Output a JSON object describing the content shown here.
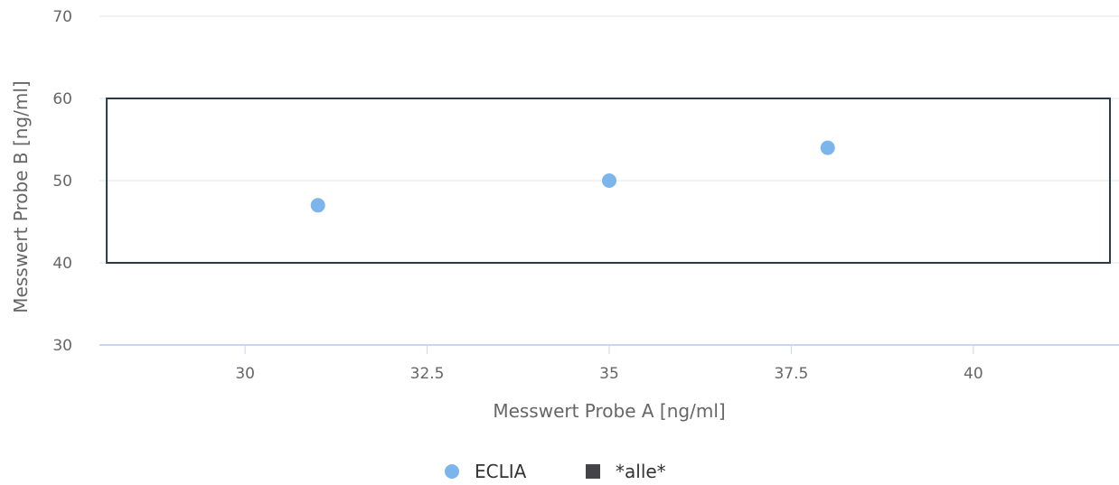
{
  "chart_data": {
    "type": "scatter",
    "title": "",
    "xlabel": "Messwert Probe A [ng/ml]",
    "ylabel": "Messwert Probe B [ng/ml]",
    "xlim": [
      28,
      42
    ],
    "ylim": [
      30,
      70
    ],
    "x_ticks": [
      "30",
      "32.5",
      "35",
      "37.5",
      "40"
    ],
    "x_tick_values": [
      30,
      32.5,
      35,
      37.5,
      40
    ],
    "y_ticks": [
      "30",
      "40",
      "50",
      "60",
      "70"
    ],
    "y_tick_values": [
      30,
      40,
      50,
      60,
      70
    ],
    "grid": "horizontal",
    "legend_position": "bottom-center",
    "series": [
      {
        "name": "ECLIA",
        "kind": "scatter",
        "color": "#7cb5ec",
        "points": [
          {
            "x": 31,
            "y": 47
          },
          {
            "x": 35,
            "y": 50
          },
          {
            "x": 38,
            "y": 54
          }
        ]
      },
      {
        "name": "*alle*",
        "kind": "rectangle",
        "color": "#434348",
        "x_range": [
          28.1,
          42
        ],
        "y_range": [
          40,
          60
        ]
      }
    ]
  }
}
